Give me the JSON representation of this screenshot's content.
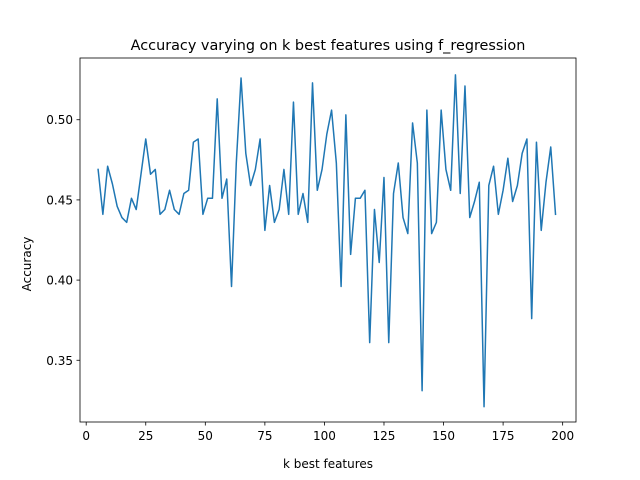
{
  "chart_data": {
    "type": "line",
    "title": "Accuracy varying on k best features using f_regression",
    "xlabel": "k best features",
    "ylabel": "Accuracy",
    "xlim": [
      -2.6,
      205.6
    ],
    "ylim": [
      0.3115,
      0.5385
    ],
    "xticks": [
      0,
      25,
      50,
      75,
      100,
      125,
      150,
      175,
      200
    ],
    "xtick_labels": [
      "0",
      "25",
      "50",
      "75",
      "100",
      "125",
      "150",
      "175",
      "200"
    ],
    "yticks": [
      0.35,
      0.4,
      0.45,
      0.5
    ],
    "ytick_labels": [
      "0.35",
      "0.40",
      "0.45",
      "0.50"
    ],
    "grid": false,
    "legend": "none",
    "series": [
      {
        "color": "#1f77b4",
        "x": [
          5,
          7,
          9,
          11,
          13,
          15,
          17,
          19,
          21,
          23,
          25,
          27,
          29,
          31,
          33,
          35,
          37,
          39,
          41,
          43,
          45,
          47,
          49,
          51,
          53,
          55,
          57,
          59,
          61,
          63,
          65,
          67,
          69,
          71,
          73,
          75,
          77,
          79,
          81,
          83,
          85,
          87,
          89,
          91,
          93,
          95,
          97,
          99,
          101,
          103,
          105,
          107,
          109,
          111,
          113,
          115,
          117,
          119,
          121,
          123,
          125,
          127,
          129,
          131,
          133,
          135,
          137,
          139,
          141,
          143,
          145,
          147,
          149,
          151,
          153,
          155,
          157,
          159,
          161,
          163,
          165,
          167,
          169,
          171,
          173,
          175,
          177,
          179,
          181,
          183,
          185,
          187,
          189,
          191,
          193,
          195,
          197
        ],
        "y": [
          0.469,
          0.441,
          0.471,
          0.46,
          0.446,
          0.439,
          0.436,
          0.451,
          0.444,
          0.466,
          0.488,
          0.466,
          0.469,
          0.441,
          0.444,
          0.456,
          0.444,
          0.441,
          0.454,
          0.456,
          0.486,
          0.488,
          0.441,
          0.451,
          0.451,
          0.513,
          0.451,
          0.463,
          0.396,
          0.473,
          0.526,
          0.479,
          0.459,
          0.469,
          0.488,
          0.431,
          0.459,
          0.436,
          0.444,
          0.469,
          0.441,
          0.511,
          0.441,
          0.454,
          0.436,
          0.523,
          0.456,
          0.469,
          0.491,
          0.506,
          0.473,
          0.396,
          0.503,
          0.416,
          0.451,
          0.451,
          0.456,
          0.361,
          0.444,
          0.411,
          0.464,
          0.361,
          0.454,
          0.473,
          0.439,
          0.429,
          0.498,
          0.473,
          0.331,
          0.506,
          0.429,
          0.436,
          0.506,
          0.469,
          0.456,
          0.528,
          0.454,
          0.521,
          0.439,
          0.449,
          0.461,
          0.321,
          0.459,
          0.471,
          0.441,
          0.456,
          0.476,
          0.449,
          0.459,
          0.479,
          0.488,
          0.376,
          0.486,
          0.431,
          0.461,
          0.483,
          0.441
        ]
      }
    ]
  }
}
